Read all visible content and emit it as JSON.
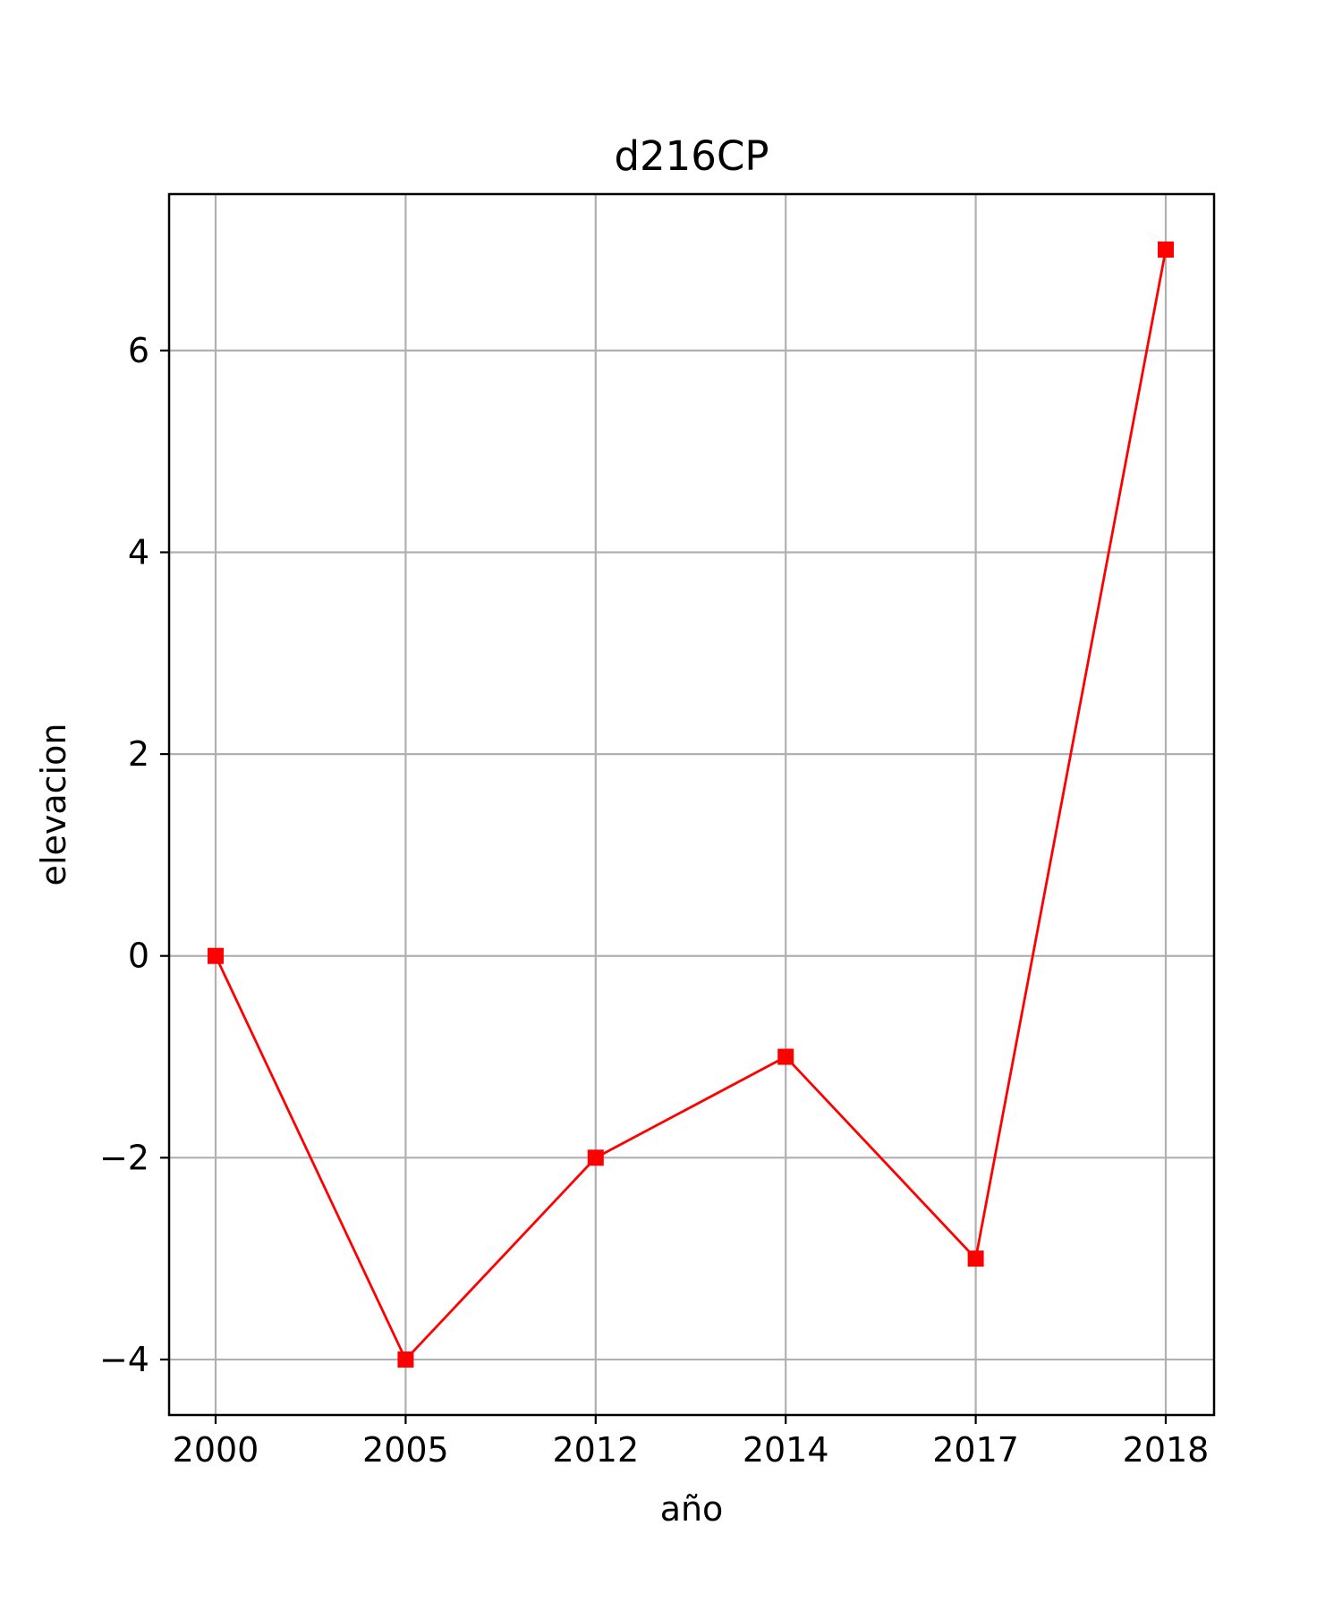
{
  "chart_data": {
    "type": "line",
    "title": "d216CP",
    "xlabel": "año",
    "ylabel": "elevacion",
    "categories": [
      "2000",
      "2005",
      "2012",
      "2014",
      "2017",
      "2018"
    ],
    "series": [
      {
        "values": [
          0,
          -4,
          -2,
          -1,
          -3,
          7
        ],
        "color": "#ff0000",
        "marker": "square"
      }
    ],
    "yticks": [
      -4,
      -2,
      0,
      2,
      4,
      6
    ],
    "ytick_labels": [
      "−4",
      "−2",
      "0",
      "2",
      "4",
      "6"
    ],
    "ylim": [
      -4.55,
      7.55
    ],
    "grid": true,
    "legend": "none"
  }
}
